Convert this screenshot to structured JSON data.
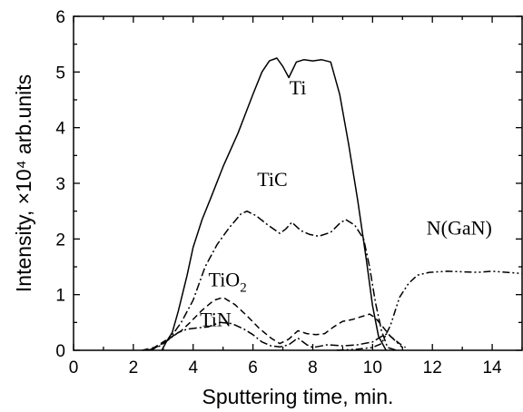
{
  "chart_data": {
    "type": "line",
    "xlabel": "Sputtering time, min.",
    "ylabel": "Intensity, ×10⁴ arb.units",
    "xlim": [
      0,
      15
    ],
    "ylim": [
      0,
      6
    ],
    "x_ticks": [
      "0",
      "2",
      "4",
      "6",
      "8",
      "10",
      "12",
      "14"
    ],
    "y_ticks": [
      "0",
      "1",
      "2",
      "3",
      "4",
      "5",
      "6"
    ],
    "grid": false,
    "legend": "none",
    "series": [
      {
        "name": "Ti",
        "style": "solid",
        "points": [
          [
            2.95,
            0.0
          ],
          [
            3.1,
            0.15
          ],
          [
            3.3,
            0.32
          ],
          [
            3.5,
            0.7
          ],
          [
            3.8,
            1.35
          ],
          [
            4.0,
            1.85
          ],
          [
            4.3,
            2.35
          ],
          [
            4.6,
            2.75
          ],
          [
            5.0,
            3.3
          ],
          [
            5.5,
            3.9
          ],
          [
            6.0,
            4.6
          ],
          [
            6.3,
            5.0
          ],
          [
            6.55,
            5.2
          ],
          [
            6.8,
            5.25
          ],
          [
            7.0,
            5.1
          ],
          [
            7.2,
            4.9
          ],
          [
            7.45,
            5.18
          ],
          [
            7.7,
            5.22
          ],
          [
            8.0,
            5.2
          ],
          [
            8.3,
            5.22
          ],
          [
            8.6,
            5.18
          ],
          [
            8.9,
            4.6
          ],
          [
            9.2,
            3.7
          ],
          [
            9.5,
            2.7
          ],
          [
            9.8,
            1.6
          ],
          [
            10.0,
            0.8
          ],
          [
            10.2,
            0.25
          ],
          [
            10.45,
            0.0
          ]
        ]
      },
      {
        "name": "TiC",
        "style": "dash-dot",
        "points": [
          [
            2.6,
            0.0
          ],
          [
            2.9,
            0.1
          ],
          [
            3.2,
            0.2
          ],
          [
            3.6,
            0.5
          ],
          [
            4.0,
            0.9
          ],
          [
            4.4,
            1.5
          ],
          [
            4.8,
            1.9
          ],
          [
            5.2,
            2.2
          ],
          [
            5.6,
            2.45
          ],
          [
            5.8,
            2.5
          ],
          [
            6.1,
            2.42
          ],
          [
            6.5,
            2.25
          ],
          [
            6.9,
            2.1
          ],
          [
            7.1,
            2.18
          ],
          [
            7.3,
            2.3
          ],
          [
            7.6,
            2.15
          ],
          [
            7.9,
            2.08
          ],
          [
            8.2,
            2.05
          ],
          [
            8.6,
            2.12
          ],
          [
            8.9,
            2.28
          ],
          [
            9.1,
            2.35
          ],
          [
            9.4,
            2.25
          ],
          [
            9.7,
            2.0
          ],
          [
            9.9,
            1.5
          ],
          [
            10.1,
            0.85
          ],
          [
            10.3,
            0.35
          ],
          [
            10.5,
            0.05
          ],
          [
            10.8,
            0.0
          ]
        ]
      },
      {
        "name": "TiO2",
        "style": "dashed",
        "points": [
          [
            2.3,
            0.0
          ],
          [
            2.7,
            0.05
          ],
          [
            3.0,
            0.15
          ],
          [
            3.3,
            0.25
          ],
          [
            3.6,
            0.35
          ],
          [
            3.9,
            0.5
          ],
          [
            4.3,
            0.72
          ],
          [
            4.7,
            0.9
          ],
          [
            5.0,
            0.95
          ],
          [
            5.4,
            0.82
          ],
          [
            5.8,
            0.62
          ],
          [
            6.2,
            0.4
          ],
          [
            6.6,
            0.22
          ],
          [
            6.9,
            0.12
          ],
          [
            7.2,
            0.2
          ],
          [
            7.5,
            0.35
          ],
          [
            7.8,
            0.3
          ],
          [
            8.1,
            0.28
          ],
          [
            8.4,
            0.3
          ],
          [
            8.7,
            0.42
          ],
          [
            9.0,
            0.52
          ],
          [
            9.3,
            0.55
          ],
          [
            9.6,
            0.6
          ],
          [
            9.9,
            0.65
          ],
          [
            10.1,
            0.58
          ],
          [
            10.3,
            0.45
          ],
          [
            10.6,
            0.25
          ],
          [
            10.9,
            0.12
          ],
          [
            11.1,
            0.05
          ]
        ]
      },
      {
        "name": "TiN",
        "style": "dash-dot",
        "points": [
          [
            2.5,
            0.0
          ],
          [
            2.9,
            0.08
          ],
          [
            3.2,
            0.2
          ],
          [
            3.5,
            0.32
          ],
          [
            3.8,
            0.38
          ],
          [
            4.1,
            0.4
          ],
          [
            4.5,
            0.42
          ],
          [
            4.9,
            0.5
          ],
          [
            5.3,
            0.48
          ],
          [
            5.7,
            0.38
          ],
          [
            6.0,
            0.28
          ],
          [
            6.3,
            0.15
          ],
          [
            6.6,
            0.08
          ],
          [
            6.9,
            0.06
          ],
          [
            7.2,
            0.1
          ],
          [
            7.5,
            0.22
          ],
          [
            7.8,
            0.1
          ],
          [
            8.0,
            0.05
          ],
          [
            8.5,
            0.1
          ],
          [
            9.0,
            0.08
          ],
          [
            9.5,
            0.1
          ],
          [
            10.0,
            0.15
          ],
          [
            10.3,
            0.25
          ],
          [
            10.5,
            0.3
          ],
          [
            10.8,
            0.15
          ],
          [
            11.0,
            0.05
          ]
        ]
      },
      {
        "name": "N(GaN)",
        "style": "dash-dot-dot",
        "points": [
          [
            8.8,
            0.0
          ],
          [
            9.5,
            0.02
          ],
          [
            10.0,
            0.05
          ],
          [
            10.3,
            0.12
          ],
          [
            10.6,
            0.45
          ],
          [
            10.9,
            0.95
          ],
          [
            11.2,
            1.2
          ],
          [
            11.5,
            1.35
          ],
          [
            11.9,
            1.4
          ],
          [
            12.5,
            1.42
          ],
          [
            13.0,
            1.41
          ],
          [
            13.5,
            1.4
          ],
          [
            14.0,
            1.42
          ],
          [
            14.5,
            1.4
          ],
          [
            15.0,
            1.38
          ]
        ]
      }
    ],
    "annotations": [
      {
        "text": "Ti",
        "x": 7.5,
        "y": 4.6
      },
      {
        "text": "TiC",
        "x": 6.65,
        "y": 2.95
      },
      {
        "text": "TiO",
        "sub": "2",
        "x": 5.3,
        "y": 1.15
      },
      {
        "text": "TiN",
        "x": 4.75,
        "y": 0.43
      },
      {
        "text": "N(GaN)",
        "x": 12.9,
        "y": 2.08
      }
    ]
  }
}
